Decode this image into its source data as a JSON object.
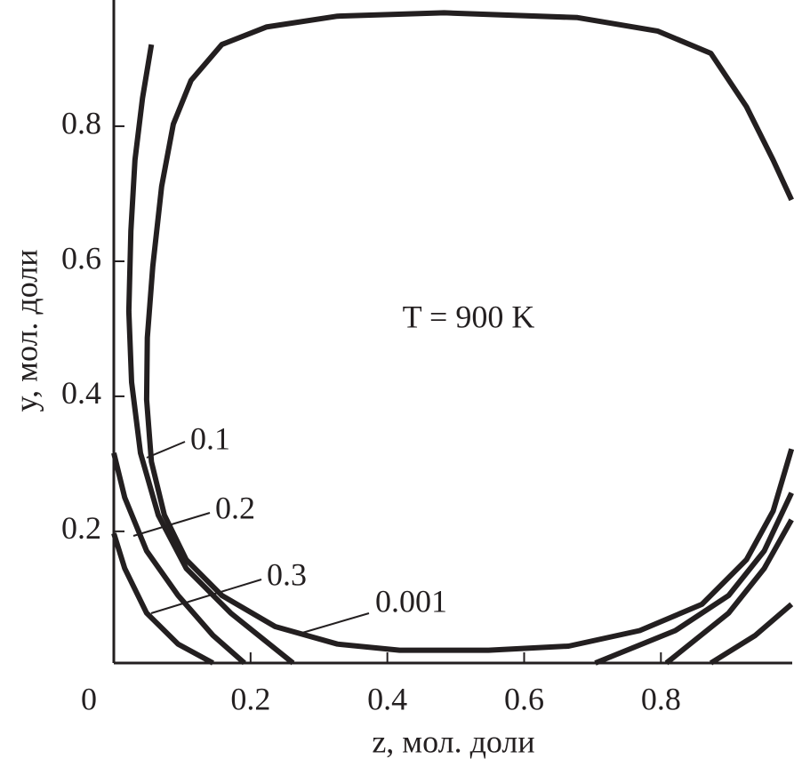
{
  "chart_data": {
    "type": "contour",
    "annotation": "T = 900 K",
    "xlabel": "z, мол. доли",
    "ylabel": "y, мол. доли",
    "xlim": [
      0,
      0.992
    ],
    "ylim": [
      0.005,
      0.987
    ],
    "xticks": [
      0,
      0.2,
      0.4,
      0.6,
      0.8
    ],
    "yticks": [
      0.2,
      0.4,
      0.6,
      0.8
    ],
    "color": "#231f20",
    "series": [
      {
        "name": "0.001",
        "x": [
          0.991,
          0.964,
          0.925,
          0.873,
          0.795,
          0.678,
          0.483,
          0.327,
          0.223,
          0.158,
          0.113,
          0.087,
          0.07,
          0.057,
          0.049,
          0.048,
          0.055,
          0.074,
          0.106,
          0.158,
          0.236,
          0.327,
          0.418,
          0.548,
          0.665,
          0.769,
          0.86,
          0.925,
          0.964,
          0.991
        ],
        "y": [
          0.691,
          0.75,
          0.829,
          0.908,
          0.941,
          0.961,
          0.968,
          0.963,
          0.947,
          0.921,
          0.868,
          0.803,
          0.711,
          0.592,
          0.487,
          0.395,
          0.303,
          0.224,
          0.158,
          0.105,
          0.059,
          0.033,
          0.024,
          0.024,
          0.03,
          0.053,
          0.092,
          0.158,
          0.23,
          0.322
        ]
      },
      {
        "name": "0.1",
        "x": [
          0.055,
          0.042,
          0.031,
          0.025,
          0.022,
          0.026,
          0.039,
          0.065,
          0.106,
          0.171,
          0.262,
          null,
          0.991,
          0.951,
          0.899,
          0.821,
          0.704
        ],
        "y": [
          0.921,
          0.842,
          0.75,
          0.645,
          0.526,
          0.421,
          0.316,
          0.224,
          0.145,
          0.079,
          0.005,
          null,
          0.257,
          0.171,
          0.105,
          0.053,
          0.005
        ]
      },
      {
        "name": "0.2",
        "x": [
          0,
          0.016,
          0.048,
          0.094,
          0.145,
          0.191,
          null,
          0.991,
          0.951,
          0.899,
          0.808
        ],
        "y": [
          0.316,
          0.25,
          0.171,
          0.105,
          0.046,
          0.005,
          null,
          0.217,
          0.145,
          0.079,
          0.005
        ]
      },
      {
        "name": "0.3",
        "x": [
          0,
          0.016,
          0.048,
          0.094,
          0.145,
          null,
          0.991,
          0.938,
          0.873
        ],
        "y": [
          0.197,
          0.145,
          0.079,
          0.033,
          0.005,
          null,
          0.092,
          0.046,
          0.005
        ]
      }
    ]
  }
}
